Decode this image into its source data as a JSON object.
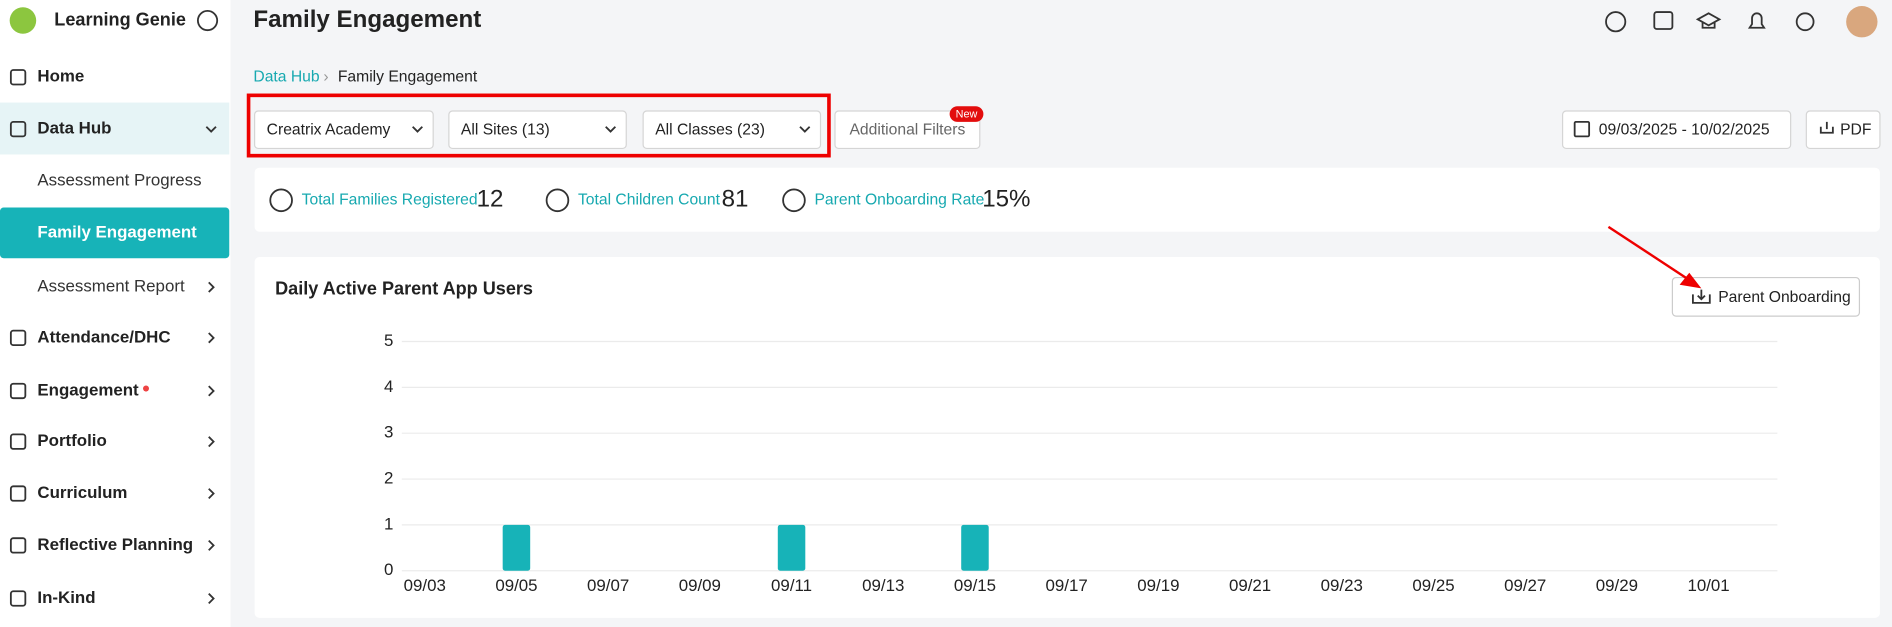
{
  "sidebar": {
    "brand": "Learning Genie",
    "items": [
      "Home",
      "Data Hub",
      "Assessment Progress",
      "Family Engagement",
      "Assessment Report",
      "Attendance/DHC",
      "Engagement",
      "Portfolio",
      "Curriculum",
      "Reflective Planning",
      "In-Kind"
    ]
  },
  "header": {
    "title": "Family Engagement"
  },
  "breadcrumb": [
    "Data Hub",
    "Family Engagement"
  ],
  "filters": {
    "agency": "Creatrix Academy",
    "sites": "All Sites (13)",
    "classes": "All Classes (23)",
    "additional": "Additional Filters",
    "badge": "New",
    "date_range": "09/03/2025 - 10/02/2025",
    "pdf": "PDF"
  },
  "stats": [
    {
      "label": "Total Families Registered",
      "value": 12
    },
    {
      "label": "Total Children Count",
      "value": 81
    },
    {
      "label": "Parent Onboarding Rate",
      "value": "15%"
    }
  ],
  "export_button": "Parent Onboarding",
  "chart_data": {
    "type": "bar",
    "title": "Daily Active Parent App Users",
    "categories": [
      "09/03",
      null,
      "09/05",
      null,
      "09/07",
      null,
      "09/09",
      null,
      "09/11",
      null,
      "09/13",
      null,
      "09/15",
      null,
      "09/17",
      null,
      "09/19",
      null,
      "09/21",
      null,
      "09/23",
      null,
      "09/25",
      null,
      "09/27",
      null,
      "09/29",
      null,
      "10/01",
      null
    ],
    "values": [
      0,
      0,
      1,
      0,
      0,
      0,
      0,
      0,
      1,
      0,
      0,
      0,
      1,
      0,
      0,
      0,
      0,
      0,
      0,
      0,
      0,
      0,
      0,
      0,
      0,
      0,
      0,
      0,
      0,
      0
    ],
    "color": "#17b3b8",
    "ylim": [
      0,
      5
    ],
    "yticks": [
      0,
      1,
      2,
      3,
      4,
      5
    ],
    "grid": true
  }
}
